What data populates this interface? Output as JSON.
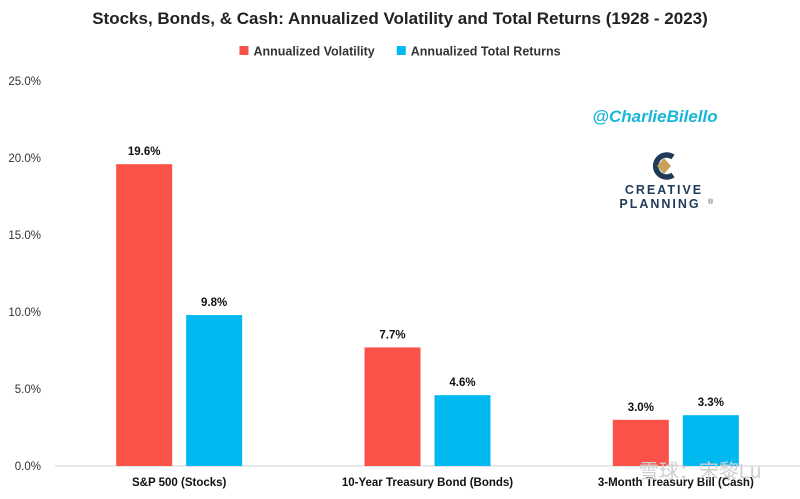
{
  "chart_data": {
    "type": "bar",
    "title": "Stocks, Bonds, & Cash: Annualized Volatility and Total Returns (1928 - 2023)",
    "categories": [
      "S&P 500 (Stocks)",
      "10-Year Treasury Bond (Bonds)",
      "3-Month Treasury Bill (Cash)"
    ],
    "series": [
      {
        "name": "Annualized Volatility",
        "color": "#fa5148",
        "values": [
          19.6,
          7.7,
          3.0
        ],
        "labels": [
          "19.6%",
          "7.7%",
          "3.0%"
        ]
      },
      {
        "name": "Annualized Total Returns",
        "color": "#00b9f0",
        "values": [
          9.8,
          4.6,
          3.3
        ],
        "labels": [
          "9.8%",
          "4.6%",
          "3.3%"
        ]
      }
    ],
    "ylim": [
      0,
      25
    ],
    "yticks": [
      0,
      5,
      10,
      15,
      20,
      25
    ],
    "ytick_labels": [
      "0.0%",
      "5.0%",
      "10.0%",
      "15.0%",
      "20.0%",
      "25.0%"
    ],
    "xlabel": "",
    "ylabel": "",
    "grid": false,
    "legend_position": "top-center"
  },
  "annotations": {
    "handle": "@CharlieBilello",
    "logo_line1": "CREATIVE",
    "logo_line2": "PLANNING",
    "logo_mark": "®",
    "watermark": "雪球：宋黎Lu"
  }
}
